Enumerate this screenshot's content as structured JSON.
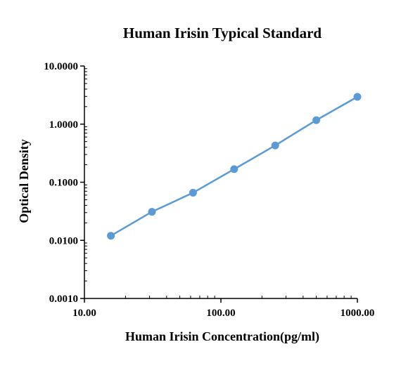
{
  "chart_data": {
    "type": "line",
    "title": "Human Irisin Typical Standard",
    "xlabel": "Human Irisin Concentration(pg/ml)",
    "ylabel": "Optical Density",
    "x_scale": "log",
    "y_scale": "log",
    "xlim": [
      10,
      1000
    ],
    "ylim": [
      0.001,
      10
    ],
    "x_ticks": [
      10,
      100,
      1000
    ],
    "x_tick_labels": [
      "10.00",
      "100.00",
      "1000.00"
    ],
    "y_ticks": [
      0.001,
      0.01,
      0.1,
      1,
      10
    ],
    "y_tick_labels": [
      "0.0010",
      "0.0100",
      "0.1000",
      "1.0000",
      "10.0000"
    ],
    "grid": false,
    "series": [
      {
        "x": [
          15.625,
          31.25,
          62.5,
          125,
          250,
          500,
          1000
        ],
        "y": [
          0.012,
          0.031,
          0.066,
          0.168,
          0.43,
          1.17,
          2.95
        ]
      }
    ],
    "colors": {
      "series": "#5b9bd5",
      "axis": "#000000"
    }
  }
}
